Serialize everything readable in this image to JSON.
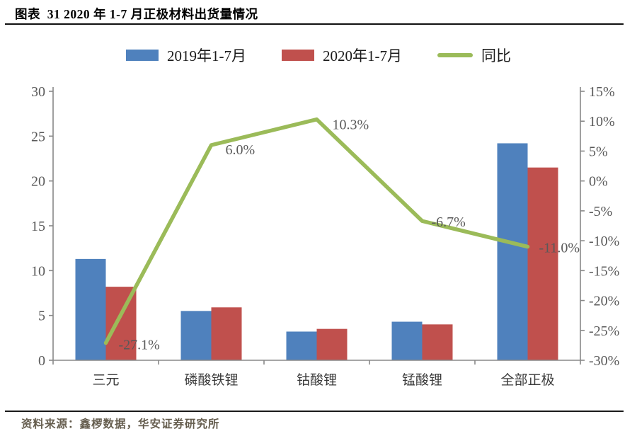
{
  "title": "图表  31 2020 年 1-7 月正极材料出货量情况",
  "source": "资料来源：鑫椤数据，华安证券研究所",
  "colors": {
    "bar_2019": "#4F81BD",
    "bar_2020": "#C0504D",
    "line_yoy": "#9BBB59",
    "axis_line": "#898989",
    "axis_text": "#595959",
    "category_text": "#3b3b3b",
    "point_label_text": "#595959"
  },
  "chart_data": {
    "type": "bar",
    "subtype": "grouped bars with overlay line on secondary axis",
    "categories": [
      "三元",
      "磷酸铁锂",
      "钴酸锂",
      "锰酸锂",
      "全部正极"
    ],
    "series": [
      {
        "name": "2019年1-7月",
        "type": "bar",
        "axis": "left",
        "color": "#4F81BD",
        "values": [
          11.3,
          5.5,
          3.2,
          4.3,
          24.2
        ]
      },
      {
        "name": "2020年1-7月",
        "type": "bar",
        "axis": "left",
        "color": "#C0504D",
        "values": [
          8.2,
          5.9,
          3.5,
          4.0,
          21.5
        ]
      },
      {
        "name": "同比",
        "type": "line",
        "axis": "right",
        "color": "#9BBB59",
        "values": [
          -27.1,
          6.0,
          10.3,
          -6.7,
          -11.0
        ],
        "point_labels": [
          "-27.1%",
          "6.0%",
          "10.3%",
          "-6.7%",
          "-11.0%"
        ]
      }
    ],
    "left_axis": {
      "min": 0,
      "max": 30,
      "step": 5,
      "ticks": [
        "0",
        "5",
        "10",
        "15",
        "20",
        "25",
        "30"
      ]
    },
    "right_axis": {
      "min": -30,
      "max": 15,
      "step": 5,
      "ticks": [
        "15%",
        "10%",
        "5%",
        "0%",
        "-5%",
        "-10%",
        "-15%",
        "-20%",
        "-25%",
        "-30%"
      ]
    },
    "grid": false,
    "legend_position": "top"
  }
}
